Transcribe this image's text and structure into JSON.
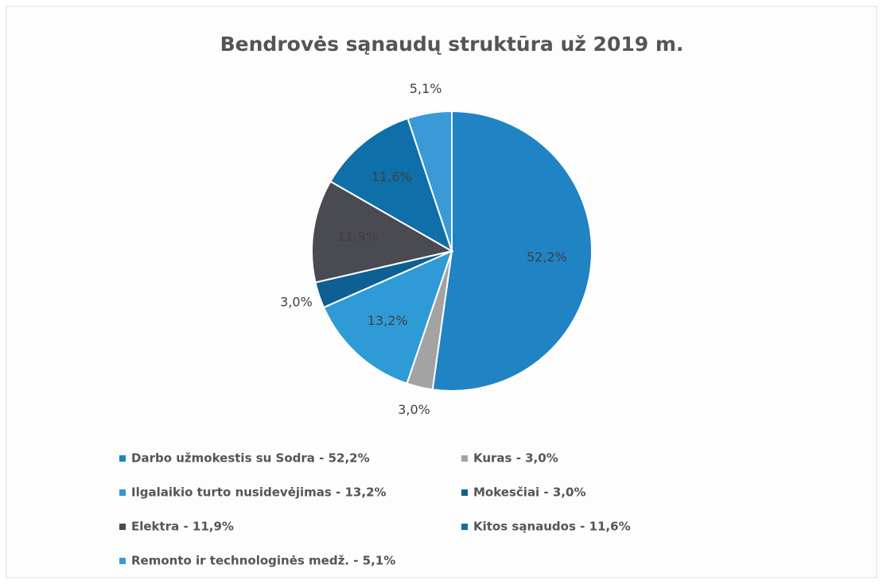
{
  "chart_data": {
    "type": "pie",
    "title": "Bendrovės sąnaudų struktūra už 2019 m.",
    "categories": [
      "Darbo užmokestis su Sodra - 52,2%",
      "Kuras - 3,0%",
      "Ilgalaikio turto nusidevėjimas - 13,2%",
      "Mokesčiai - 3,0%",
      "Elektra - 11,9%",
      "Kitos sąnaudos - 11,6%",
      "Remonto ir technologinės medž. - 5,1%"
    ],
    "values": [
      52.2,
      3.0,
      13.2,
      3.0,
      11.9,
      11.6,
      5.1
    ],
    "value_labels": [
      "52,2%",
      "3,0%",
      "13,2%",
      "3,0%",
      "11,9%",
      "11,6%",
      "5,1%"
    ],
    "colors": [
      "#1f83c4",
      "#a3a3a3",
      "#2e9bd6",
      "#0e5f94",
      "#4a4a52",
      "#0f6fa8",
      "#3a9ad8"
    ]
  }
}
